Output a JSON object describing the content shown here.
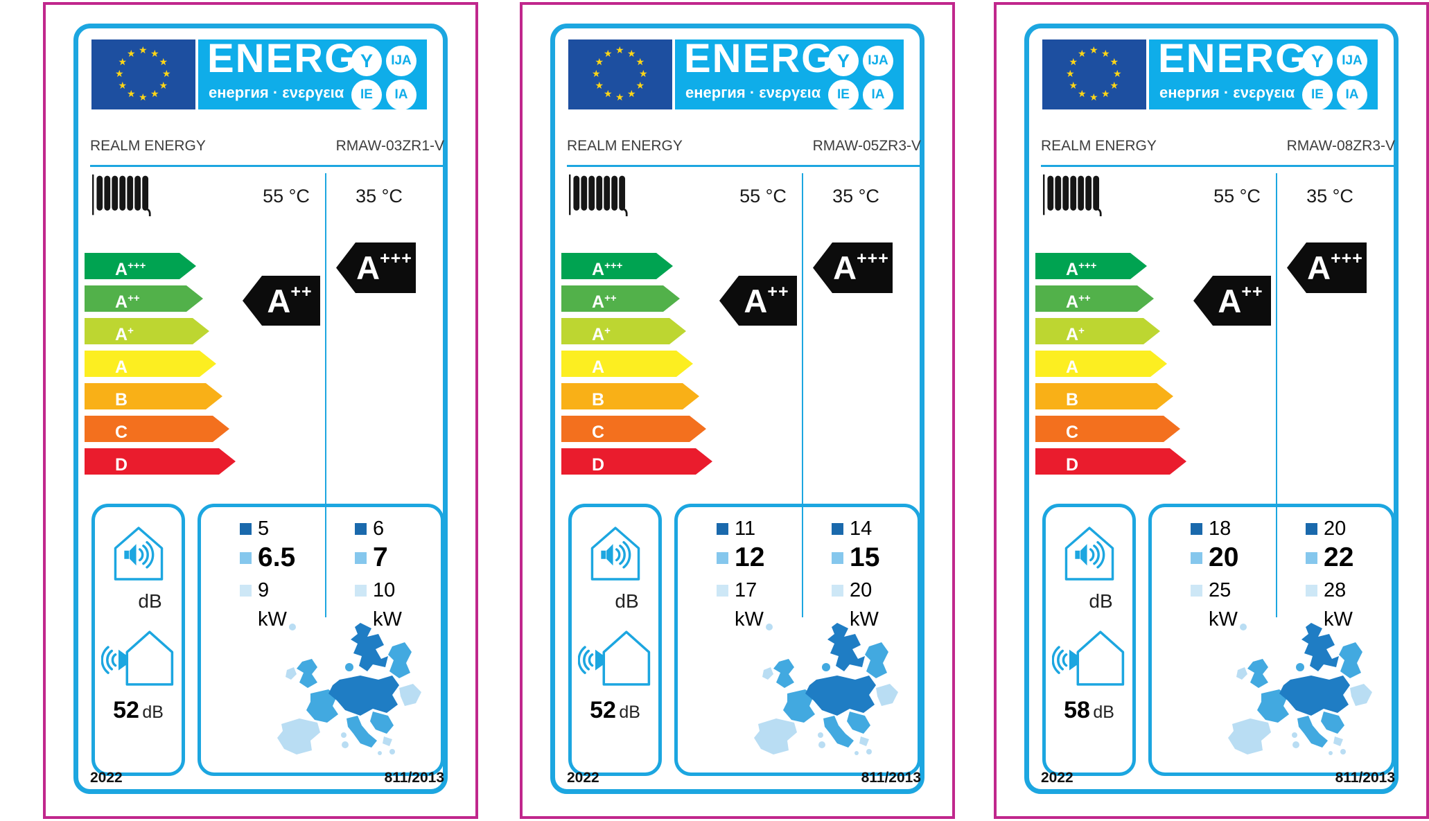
{
  "brand_colors": {
    "magenta_frame": "#c0278c",
    "cyan_frame": "#1ca6e0",
    "header_cyan": "#0fade9",
    "eu_flag_blue": "#1d4fa0",
    "star_yellow": "#ffd617"
  },
  "header": {
    "logo_text": "ENERG",
    "logo_subtitle": "енергия · ενεργεια",
    "language_suffixes": [
      "Y",
      "IJA",
      "IE",
      "IA"
    ]
  },
  "scale_classes": [
    {
      "letter": "A",
      "sup": "+++",
      "color": "#00a351"
    },
    {
      "letter": "A",
      "sup": "++",
      "color": "#52b14a"
    },
    {
      "letter": "A",
      "sup": "+",
      "color": "#bdd631"
    },
    {
      "letter": "A",
      "sup": "",
      "color": "#fcee21"
    },
    {
      "letter": "B",
      "sup": "",
      "color": "#f9b017"
    },
    {
      "letter": "C",
      "sup": "",
      "color": "#f3701e"
    },
    {
      "letter": "D",
      "sup": "",
      "color": "#ea1c2d"
    }
  ],
  "labels": [
    {
      "supplier": "REALM ENERGY",
      "model": "RMAW-03ZR1-V",
      "temp_high": "55 °C",
      "temp_low": "35 °C",
      "rating_high_letter": "A",
      "rating_high_sup": "++",
      "rating_low_letter": "A",
      "rating_low_sup": "+++",
      "indoor_sound_unit": "dB",
      "outdoor_sound_value": "52",
      "outdoor_sound_unit": "dB",
      "kw_high": {
        "colder": "5",
        "average": "6.5",
        "warmer": "9",
        "unit": "kW"
      },
      "kw_low": {
        "colder": "6",
        "average": "7",
        "warmer": "10",
        "unit": "kW"
      },
      "year": "2022",
      "regulation": "811/2013"
    },
    {
      "supplier": "REALM ENERGY",
      "model": "RMAW-05ZR3-V",
      "temp_high": "55 °C",
      "temp_low": "35 °C",
      "rating_high_letter": "A",
      "rating_high_sup": "++",
      "rating_low_letter": "A",
      "rating_low_sup": "+++",
      "indoor_sound_unit": "dB",
      "outdoor_sound_value": "52",
      "outdoor_sound_unit": "dB",
      "kw_high": {
        "colder": "11",
        "average": "12",
        "warmer": "17",
        "unit": "kW"
      },
      "kw_low": {
        "colder": "14",
        "average": "15",
        "warmer": "20",
        "unit": "kW"
      },
      "year": "2022",
      "regulation": "811/2013"
    },
    {
      "supplier": "REALM ENERGY",
      "model": "RMAW-08ZR3-V",
      "temp_high": "55 °C",
      "temp_low": "35 °C",
      "rating_high_letter": "A",
      "rating_high_sup": "++",
      "rating_low_letter": "A",
      "rating_low_sup": "+++",
      "indoor_sound_unit": "dB",
      "outdoor_sound_value": "58",
      "outdoor_sound_unit": "dB",
      "kw_high": {
        "colder": "18",
        "average": "20",
        "warmer": "25",
        "unit": "kW"
      },
      "kw_low": {
        "colder": "20",
        "average": "22",
        "warmer": "28",
        "unit": "kW"
      },
      "year": "2022",
      "regulation": "811/2013"
    }
  ]
}
